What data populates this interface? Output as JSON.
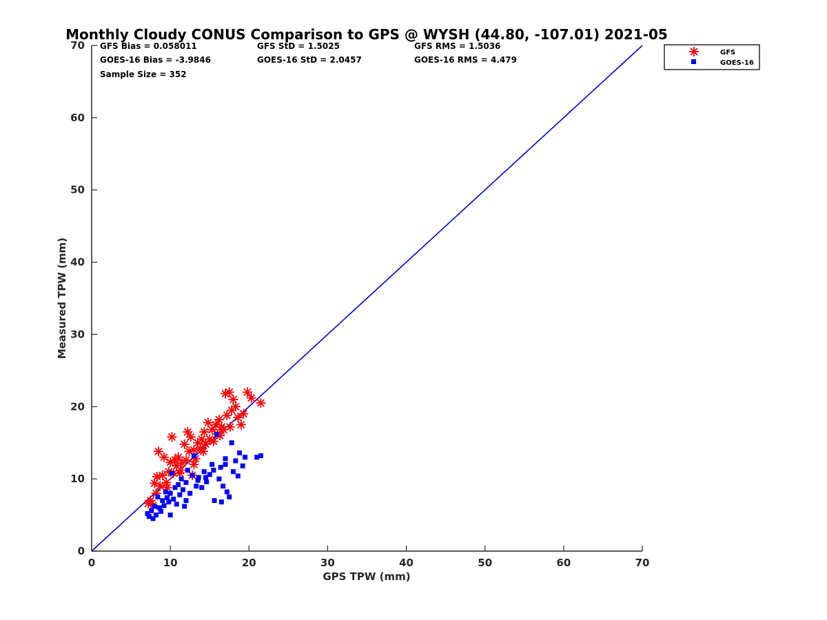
{
  "chart_data": {
    "type": "scatter",
    "title": "Monthly Cloudy CONUS Comparison to GPS @ WYSH (44.80, -107.01) 2021-05",
    "xlabel": "GPS TPW (mm)",
    "ylabel": "Measured TPW (mm)",
    "xlim": [
      0,
      70
    ],
    "ylim": [
      0,
      70
    ],
    "xticks": [
      "0",
      "10",
      "20",
      "30",
      "40",
      "50",
      "60",
      "70"
    ],
    "yticks": [
      "0",
      "10",
      "20",
      "30",
      "40",
      "50",
      "60",
      "70"
    ],
    "grid": false,
    "legend_position": "top-right",
    "stats": [
      {
        "text": "GFS Bias = 0.058011"
      },
      {
        "text": "GFS StD = 1.5025"
      },
      {
        "text": "GFS RMS = 1.5036"
      },
      {
        "text": "GOES-16 Bias = -3.9846"
      },
      {
        "text": "GOES-16 StD = 2.0457"
      },
      {
        "text": "GOES-16 RMS = 4.479"
      },
      {
        "text": "Sample Size = 352"
      }
    ],
    "reference_line": {
      "x": [
        0,
        70
      ],
      "y": [
        0,
        70
      ],
      "color": "#0000cc"
    },
    "series": [
      {
        "name": "GFS",
        "marker": "asterisk",
        "color": "#ff0000",
        "points": [
          [
            7.2,
            6.6
          ],
          [
            7.5,
            7.0
          ],
          [
            7.8,
            6.3
          ],
          [
            8.0,
            9.4
          ],
          [
            8.2,
            8.0
          ],
          [
            8.3,
            10.3
          ],
          [
            8.5,
            13.8
          ],
          [
            8.7,
            9.0
          ],
          [
            9.0,
            10.5
          ],
          [
            9.2,
            13.0
          ],
          [
            9.5,
            9.5
          ],
          [
            9.8,
            11.0
          ],
          [
            10.0,
            12.3
          ],
          [
            10.2,
            15.8
          ],
          [
            10.4,
            10.8
          ],
          [
            10.6,
            12.6
          ],
          [
            10.8,
            11.8
          ],
          [
            11.0,
            13.0
          ],
          [
            11.3,
            11.2
          ],
          [
            11.5,
            12.2
          ],
          [
            11.8,
            14.8
          ],
          [
            12.0,
            12.6
          ],
          [
            12.2,
            16.5
          ],
          [
            12.4,
            13.8
          ],
          [
            12.6,
            15.8
          ],
          [
            12.8,
            10.5
          ],
          [
            13.0,
            14.0
          ],
          [
            13.2,
            12.8
          ],
          [
            13.5,
            15.0
          ],
          [
            13.8,
            14.2
          ],
          [
            14.0,
            15.5
          ],
          [
            14.3,
            16.5
          ],
          [
            14.5,
            14.8
          ],
          [
            14.8,
            17.8
          ],
          [
            15.0,
            15.5
          ],
          [
            15.3,
            16.8
          ],
          [
            15.5,
            15.2
          ],
          [
            15.8,
            17.5
          ],
          [
            16.0,
            16.2
          ],
          [
            16.2,
            18.2
          ],
          [
            16.5,
            17.2
          ],
          [
            16.8,
            16.8
          ],
          [
            17.0,
            21.8
          ],
          [
            17.2,
            18.8
          ],
          [
            17.5,
            22.0
          ],
          [
            17.8,
            19.5
          ],
          [
            18.0,
            21.0
          ],
          [
            18.3,
            20.0
          ],
          [
            18.6,
            18.5
          ],
          [
            19.0,
            17.5
          ],
          [
            19.3,
            19.0
          ],
          [
            19.8,
            22.0
          ],
          [
            20.3,
            21.2
          ],
          [
            21.5,
            20.5
          ],
          [
            16.3,
            16.0
          ],
          [
            14.2,
            13.8
          ],
          [
            13.0,
            12.0
          ],
          [
            11.2,
            10.8
          ],
          [
            9.6,
            8.8
          ],
          [
            17.6,
            17.2
          ]
        ]
      },
      {
        "name": "GOES-16",
        "marker": "square",
        "color": "#0000ff",
        "points": [
          [
            7.1,
            5.2
          ],
          [
            7.3,
            4.8
          ],
          [
            7.6,
            5.6
          ],
          [
            7.8,
            4.5
          ],
          [
            8.0,
            6.2
          ],
          [
            8.2,
            5.0
          ],
          [
            8.4,
            7.5
          ],
          [
            8.6,
            6.0
          ],
          [
            8.8,
            5.5
          ],
          [
            9.0,
            7.0
          ],
          [
            9.2,
            6.3
          ],
          [
            9.4,
            8.2
          ],
          [
            9.6,
            7.4
          ],
          [
            9.8,
            6.8
          ],
          [
            10.0,
            8.0
          ],
          [
            10.2,
            10.8
          ],
          [
            10.4,
            7.2
          ],
          [
            10.6,
            8.8
          ],
          [
            10.8,
            6.5
          ],
          [
            11.0,
            9.2
          ],
          [
            11.2,
            7.8
          ],
          [
            11.4,
            10.0
          ],
          [
            11.6,
            8.5
          ],
          [
            11.8,
            6.2
          ],
          [
            12.0,
            9.5
          ],
          [
            12.2,
            11.2
          ],
          [
            12.5,
            8.0
          ],
          [
            12.8,
            10.5
          ],
          [
            13.0,
            13.2
          ],
          [
            13.3,
            9.0
          ],
          [
            13.6,
            10.2
          ],
          [
            14.0,
            8.8
          ],
          [
            14.3,
            11.0
          ],
          [
            14.6,
            9.6
          ],
          [
            15.0,
            10.6
          ],
          [
            15.3,
            12.0
          ],
          [
            15.6,
            7.0
          ],
          [
            15.9,
            16.2
          ],
          [
            16.2,
            10.0
          ],
          [
            16.4,
            11.6
          ],
          [
            16.7,
            9.0
          ],
          [
            17.0,
            12.8
          ],
          [
            17.2,
            8.2
          ],
          [
            17.5,
            7.5
          ],
          [
            17.8,
            15.0
          ],
          [
            18.0,
            11.0
          ],
          [
            18.3,
            12.5
          ],
          [
            18.6,
            10.4
          ],
          [
            18.8,
            13.6
          ],
          [
            19.2,
            11.8
          ],
          [
            19.5,
            13.0
          ],
          [
            21.0,
            13.0
          ],
          [
            21.5,
            13.2
          ],
          [
            16.5,
            6.8
          ],
          [
            14.5,
            10.2
          ],
          [
            12.0,
            7.0
          ],
          [
            10.0,
            5.0
          ],
          [
            17.0,
            12.0
          ],
          [
            15.5,
            11.2
          ],
          [
            13.5,
            9.8
          ]
        ]
      }
    ]
  }
}
